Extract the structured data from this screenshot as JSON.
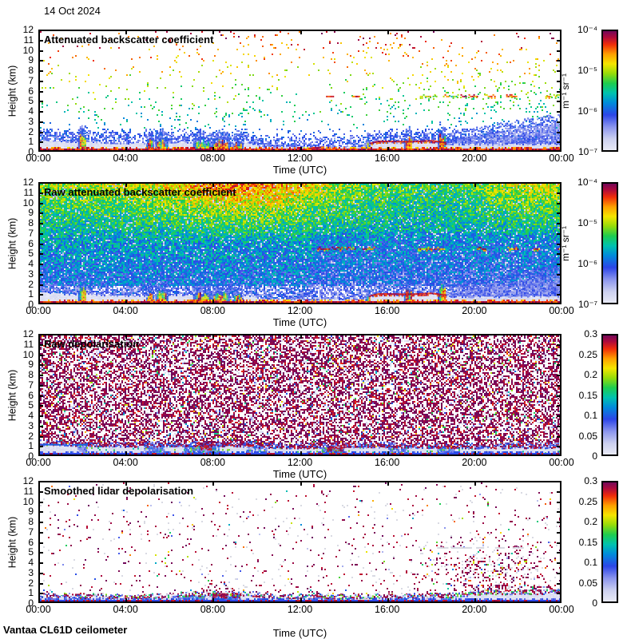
{
  "date_label": "14 Oct 2024",
  "footer": "Vantaa CL61D ceilometer",
  "colormap": [
    {
      "v": 0.0,
      "color": "#ecedf6"
    },
    {
      "v": 0.1,
      "color": "#cdd1f0"
    },
    {
      "v": 0.2,
      "color": "#8c96ee"
    },
    {
      "v": 0.3,
      "color": "#2d46e8"
    },
    {
      "v": 0.4,
      "color": "#008cdb"
    },
    {
      "v": 0.48,
      "color": "#00c3af"
    },
    {
      "v": 0.56,
      "color": "#1ecd50"
    },
    {
      "v": 0.64,
      "color": "#96dc0a"
    },
    {
      "v": 0.72,
      "color": "#f5e600"
    },
    {
      "v": 0.8,
      "color": "#ffa000"
    },
    {
      "v": 0.88,
      "color": "#f02d0a"
    },
    {
      "v": 0.94,
      "color": "#af0a3c"
    },
    {
      "v": 1.0,
      "color": "#69085f"
    }
  ],
  "chart_data": [
    {
      "type": "heatmap",
      "title": "Attenuated backscatter coefficient",
      "xlabel": "Time (UTC)",
      "ylabel": "Height (km)",
      "x_ticks": [
        "00:00",
        "04:00",
        "08:00",
        "12:00",
        "16:00",
        "20:00",
        "00:00"
      ],
      "y_ticks": [
        "12",
        "11",
        "10",
        "9",
        "8",
        "7",
        "6",
        "5",
        "4",
        "3",
        "2",
        "1",
        "0"
      ],
      "x_range_hours": [
        0,
        24
      ],
      "y_range_km": [
        0,
        12
      ],
      "colorbar": {
        "unit": "m⁻¹ sr⁻¹",
        "scale": "log",
        "range": [
          "1e-7",
          "1e-4"
        ],
        "ticks": [
          "10⁻⁴",
          "10⁻⁵",
          "10⁻⁶",
          "10⁻⁷"
        ]
      },
      "render": {
        "style": "backscatter-clean",
        "seed": 11,
        "band": [
          [
            0,
            1.2
          ],
          [
            1.5,
            1.0
          ],
          [
            2.3,
            1.05
          ],
          [
            3,
            0.9
          ],
          [
            4.5,
            0.85
          ],
          [
            6,
            0.95
          ],
          [
            9.6,
            0.9
          ],
          [
            10.2,
            0.55
          ],
          [
            12,
            0.5
          ],
          [
            14.8,
            0.55
          ],
          [
            15.6,
            0.95
          ],
          [
            17,
            0.9
          ],
          [
            18,
            1.0
          ],
          [
            18.8,
            0.78
          ],
          [
            21,
            0.75
          ],
          [
            24,
            0.8
          ]
        ],
        "columns": [
          [
            2.0,
            0.35,
            1.9
          ],
          [
            5.1,
            0.3,
            1.4
          ],
          [
            5.65,
            0.55,
            1.5
          ],
          [
            7.5,
            0.8,
            1.3
          ],
          [
            8.35,
            0.9,
            1.25
          ],
          [
            9.15,
            0.5,
            1.1
          ],
          [
            15.1,
            0.18,
            1.15
          ],
          [
            16.95,
            0.35,
            1.7
          ],
          [
            18.5,
            0.35,
            2.05
          ]
        ],
        "cloud_line": {
          "h": 5.5,
          "t0": 17.5,
          "t1": 24,
          "extra": [
            13.2,
            14.4
          ]
        },
        "wedge": {
          "t0": 18.4,
          "h1": 3.0
        },
        "red_top_line": {
          "t0": 15.2,
          "t1": 18.7
        },
        "red_bumps": {
          "t0": 11.8,
          "t1": 13.6,
          "h": 0.35
        }
      }
    },
    {
      "type": "heatmap",
      "title": "Raw attenuated backscatter coefficient",
      "xlabel": "Time (UTC)",
      "ylabel": "Height (km)",
      "x_ticks": [
        "00:00",
        "04:00",
        "08:00",
        "12:00",
        "16:00",
        "20:00",
        "00:00"
      ],
      "y_ticks": [
        "12",
        "11",
        "10",
        "9",
        "8",
        "7",
        "6",
        "5",
        "4",
        "3",
        "2",
        "1",
        "0"
      ],
      "x_range_hours": [
        0,
        24
      ],
      "y_range_km": [
        0,
        12
      ],
      "colorbar": {
        "unit": "m⁻¹ sr⁻¹",
        "scale": "log",
        "range": [
          "1e-7",
          "1e-4"
        ],
        "ticks": [
          "10⁻⁴",
          "10⁻⁵",
          "10⁻⁶",
          "10⁻⁷"
        ]
      },
      "render": {
        "style": "backscatter-raw",
        "seed": 22,
        "band": [
          [
            0,
            1.2
          ],
          [
            1.5,
            1.0
          ],
          [
            2.3,
            1.05
          ],
          [
            3,
            0.9
          ],
          [
            4.5,
            0.85
          ],
          [
            6,
            0.95
          ],
          [
            9.6,
            0.9
          ],
          [
            10.2,
            0.55
          ],
          [
            12,
            0.5
          ],
          [
            14.8,
            0.55
          ],
          [
            15.6,
            0.95
          ],
          [
            17,
            0.9
          ],
          [
            18,
            1.0
          ],
          [
            18.8,
            0.78
          ],
          [
            21,
            0.75
          ],
          [
            24,
            0.8
          ]
        ],
        "columns": [
          [
            2.0,
            0.35,
            1.9
          ],
          [
            5.1,
            0.3,
            1.4
          ],
          [
            5.65,
            0.55,
            1.5
          ],
          [
            7.5,
            0.8,
            1.3
          ],
          [
            8.35,
            0.9,
            1.25
          ],
          [
            9.15,
            0.5,
            1.1
          ],
          [
            15.1,
            0.18,
            1.15
          ],
          [
            16.95,
            0.35,
            1.7
          ],
          [
            18.5,
            0.35,
            2.05
          ]
        ],
        "cloud_line": {
          "h": 5.5,
          "t0": 12.8,
          "t1": 24
        },
        "wedge": {
          "t0": 18.4,
          "h1": 3.0
        },
        "red_top_line": {
          "t0": 15.2,
          "t1": 18.7
        }
      }
    },
    {
      "type": "heatmap",
      "title": "Raw depolarisation",
      "xlabel": "Time (UTC)",
      "ylabel": "Height (km)",
      "x_ticks": [
        "00:00",
        "04:00",
        "08:00",
        "12:00",
        "16:00",
        "20:00",
        "00:00"
      ],
      "y_ticks": [
        "12",
        "11",
        "10",
        "9",
        "8",
        "7",
        "6",
        "5",
        "4",
        "3",
        "2",
        "1",
        "0"
      ],
      "x_range_hours": [
        0,
        24
      ],
      "y_range_km": [
        0,
        12
      ],
      "colorbar": {
        "unit": "",
        "scale": "linear",
        "range": [
          0,
          0.3
        ],
        "ticks": [
          "0.3",
          "0.25",
          "0.2",
          "0.15",
          "0.1",
          "0.05",
          "0"
        ]
      },
      "render": {
        "style": "depol-raw",
        "seed": 33,
        "band": [
          [
            0,
            1.15
          ],
          [
            2,
            1.05
          ],
          [
            4,
            0.95
          ],
          [
            6,
            1.0
          ],
          [
            9,
            1.0
          ],
          [
            10.5,
            0.85
          ],
          [
            12,
            0.8
          ],
          [
            14,
            0.9
          ],
          [
            16,
            0.9
          ],
          [
            18,
            0.85
          ],
          [
            20,
            0.8
          ],
          [
            24,
            0.85
          ]
        ],
        "blue_cols": [
          [
            2.0,
            0.4
          ],
          [
            5.3,
            0.9
          ],
          [
            7.5,
            1.6
          ],
          [
            10.0,
            0.9
          ],
          [
            13.5,
            1.0
          ],
          [
            16.5,
            0.9
          ],
          [
            18.7,
            0.8
          ]
        ],
        "maroon": [
          [
            7.7,
            0.5
          ],
          [
            13.6,
            0.7
          ]
        ],
        "blue_line": {
          "h": 1.2,
          "t0": 0,
          "t1": 2.2
        }
      }
    },
    {
      "type": "heatmap",
      "title": "Smoothed lidar depolarisation",
      "xlabel": "Time (UTC)",
      "ylabel": "Height (km)",
      "x_ticks": [
        "00:00",
        "04:00",
        "08:00",
        "12:00",
        "16:00",
        "20:00",
        "00:00"
      ],
      "y_ticks": [
        "12",
        "11",
        "10",
        "9",
        "8",
        "7",
        "6",
        "5",
        "4",
        "3",
        "2",
        "1",
        "0"
      ],
      "x_range_hours": [
        0,
        24
      ],
      "y_range_km": [
        0,
        12
      ],
      "colorbar": {
        "unit": "",
        "scale": "linear",
        "range": [
          0,
          0.3
        ],
        "ticks": [
          "0.3",
          "0.25",
          "0.2",
          "0.15",
          "0.1",
          "0.05",
          "0"
        ]
      },
      "render": {
        "style": "depol-smooth",
        "seed": 44,
        "band": [
          [
            0,
            0.6
          ],
          [
            2,
            0.55
          ],
          [
            5,
            0.5
          ],
          [
            7,
            0.75
          ],
          [
            9.5,
            0.8
          ],
          [
            11,
            0.5
          ],
          [
            14,
            0.5
          ],
          [
            16,
            0.55
          ],
          [
            19,
            0.6
          ],
          [
            20.5,
            0.9
          ],
          [
            24,
            0.95
          ]
        ],
        "blue_cols": [
          [
            2.0,
            0.3
          ],
          [
            7.0,
            1.2
          ],
          [
            8.6,
            1.3
          ],
          [
            13.3,
            0.4
          ],
          [
            16.6,
            0.4
          ],
          [
            18.7,
            0.4
          ]
        ],
        "clusters": [
          {
            "t": 21,
            "h": 3,
            "st": 1.9,
            "sh": 1.7,
            "p": 0.28
          },
          {
            "t": 8.7,
            "h": 1.6,
            "st": 0.9,
            "sh": 0.5,
            "p": 0.15
          },
          {
            "t": 12.6,
            "h": 1.1,
            "st": 0.8,
            "sh": 0.35,
            "p": 0.08
          }
        ],
        "maroon": [
          [
            8.3,
            0.6
          ],
          [
            9.1,
            0.4
          ]
        ],
        "gray_line": {
          "h": 5.5,
          "t0": 18.3,
          "t1": 23.8
        }
      }
    }
  ]
}
